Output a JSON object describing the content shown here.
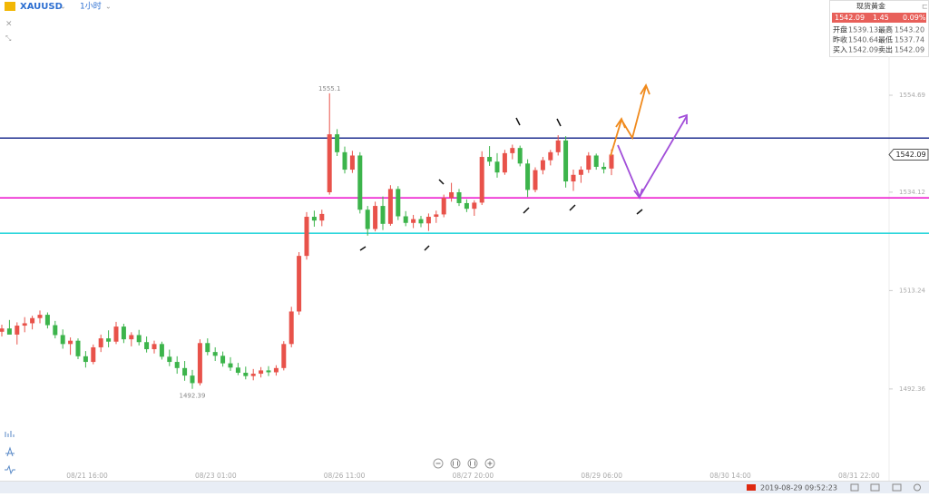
{
  "header": {
    "symbol": "XAUUSD",
    "interval": "1小时"
  },
  "quote_panel": {
    "title": "现货黄金",
    "price": "1542.09",
    "change": "1.45",
    "change_pct": "0.09%",
    "rows": [
      [
        "开盘",
        "1539.13",
        "最高",
        "1543.20"
      ],
      [
        "昨收",
        "1540.64",
        "最低",
        "1537.74"
      ],
      [
        "买入",
        "1542.09",
        "卖出",
        "1542.09"
      ]
    ]
  },
  "status": {
    "datetime": "2019-08-29 09:52:23"
  },
  "chart_data": {
    "type": "candlestick",
    "up_color": "#e8524a",
    "down_color": "#3cb44b",
    "ylim": [
      1472.9,
      1574.9
    ],
    "yticks": [
      1554.69,
      1534.12,
      1513.24,
      1492.36
    ],
    "last_price": 1542.09,
    "high_label": "1555.1",
    "low_label": "1492.39",
    "time_labels": [
      "08/21 16:00",
      "08/23 01:00",
      "08/26 11:00",
      "08/27 20:00",
      "08/29 06:00",
      "08/30 14:00",
      "08/31 22:00"
    ],
    "levels": [
      {
        "value": 1545.6,
        "color": "#1f2f8f"
      },
      {
        "value": 1532.9,
        "color": "#ee1fd0"
      },
      {
        "value": 1525.4,
        "color": "#2fd6dc"
      }
    ],
    "candles": [
      [
        1504.5,
        1506,
        1503.5,
        1505.2
      ],
      [
        1505.2,
        1507,
        1504,
        1503.9
      ],
      [
        1503.9,
        1506.5,
        1501.8,
        1505.8
      ],
      [
        1505.8,
        1507.6,
        1504.4,
        1506.3
      ],
      [
        1506.3,
        1507.9,
        1505,
        1507.4
      ],
      [
        1507.4,
        1509,
        1506.3,
        1508.1
      ],
      [
        1508.1,
        1508.6,
        1505.2,
        1505.9
      ],
      [
        1505.9,
        1506.8,
        1503.1,
        1503.8
      ],
      [
        1503.8,
        1505,
        1500.9,
        1501.9
      ],
      [
        1501.9,
        1503.3,
        1499.6,
        1502.6
      ],
      [
        1502.6,
        1503.1,
        1498.7,
        1499.3
      ],
      [
        1499.3,
        1500.4,
        1496.9,
        1498.1
      ],
      [
        1498.1,
        1501.8,
        1497.6,
        1501.2
      ],
      [
        1501.2,
        1503.9,
        1500.2,
        1503.1
      ],
      [
        1503.1,
        1504.8,
        1501.2,
        1502.4
      ],
      [
        1502.4,
        1506.6,
        1501.9,
        1505.6
      ],
      [
        1505.6,
        1506.2,
        1502.1,
        1502.9
      ],
      [
        1502.9,
        1504.4,
        1501.4,
        1503.8
      ],
      [
        1503.8,
        1504.9,
        1501.6,
        1502.3
      ],
      [
        1502.3,
        1503.5,
        1500.1,
        1500.8
      ],
      [
        1500.8,
        1502.6,
        1499.9,
        1501.9
      ],
      [
        1501.9,
        1502.4,
        1498.6,
        1499.2
      ],
      [
        1499.2,
        1500.7,
        1497.2,
        1498.1
      ],
      [
        1498.1,
        1499.3,
        1495.6,
        1496.8
      ],
      [
        1496.8,
        1498.3,
        1494.1,
        1495.2
      ],
      [
        1495.2,
        1496.4,
        1492.39,
        1493.6
      ],
      [
        1493.6,
        1502.9,
        1493.1,
        1502.1
      ],
      [
        1502.1,
        1503.1,
        1499.5,
        1500.2
      ],
      [
        1500.2,
        1501.2,
        1498.3,
        1499.4
      ],
      [
        1499.4,
        1500.3,
        1497.1,
        1497.8
      ],
      [
        1497.8,
        1499.1,
        1496.2,
        1496.9
      ],
      [
        1496.9,
        1497.9,
        1495.3,
        1495.8
      ],
      [
        1495.8,
        1497.1,
        1494.4,
        1495.1
      ],
      [
        1495.1,
        1496.6,
        1494.2,
        1495.6
      ],
      [
        1495.6,
        1497,
        1494.8,
        1496.3
      ],
      [
        1496.3,
        1497.2,
        1495.1,
        1495.9
      ],
      [
        1495.9,
        1497.4,
        1495.2,
        1496.8
      ],
      [
        1496.8,
        1502.5,
        1496.3,
        1501.9
      ],
      [
        1501.9,
        1509.8,
        1501.2,
        1508.8
      ],
      [
        1508.8,
        1521.4,
        1508.1,
        1520.6
      ],
      [
        1520.6,
        1529.9,
        1519.8,
        1528.9
      ],
      [
        1528.9,
        1530.2,
        1526.8,
        1528.1
      ],
      [
        1528.1,
        1530.4,
        1526.9,
        1529.5
      ],
      [
        1534.1,
        1555.1,
        1533.6,
        1546.4
      ],
      [
        1546.4,
        1547.5,
        1541.8,
        1542.6
      ],
      [
        1542.6,
        1543.8,
        1538.1,
        1538.9
      ],
      [
        1538.9,
        1542.9,
        1538.2,
        1541.9
      ],
      [
        1541.9,
        1542.6,
        1529.6,
        1530.4
      ],
      [
        1530.4,
        1531.2,
        1524.9,
        1526.3
      ],
      [
        1526.3,
        1532.1,
        1525.8,
        1531.2
      ],
      [
        1531.2,
        1533.2,
        1526.1,
        1527.4
      ],
      [
        1527.4,
        1535.6,
        1527,
        1534.8
      ],
      [
        1534.8,
        1535.4,
        1528.2,
        1529
      ],
      [
        1529,
        1530.1,
        1526.9,
        1527.6
      ],
      [
        1527.6,
        1529.3,
        1526.5,
        1528.4
      ],
      [
        1528.4,
        1529.1,
        1526.7,
        1527.5
      ],
      [
        1527.5,
        1529.6,
        1525.9,
        1528.9
      ],
      [
        1528.9,
        1530.2,
        1527.6,
        1529.4
      ],
      [
        1529.4,
        1533.6,
        1528.8,
        1532.9
      ],
      [
        1532.9,
        1536.1,
        1532.1,
        1534.1
      ],
      [
        1534.1,
        1534.8,
        1531.2,
        1531.8
      ],
      [
        1531.8,
        1532.6,
        1529.9,
        1530.6
      ],
      [
        1530.6,
        1532.4,
        1529.1,
        1531.9
      ],
      [
        1531.9,
        1542.8,
        1531.4,
        1541.6
      ],
      [
        1541.6,
        1543.9,
        1539.7,
        1540.6
      ],
      [
        1540.6,
        1542.4,
        1537.2,
        1538.3
      ],
      [
        1538.3,
        1543.1,
        1537.8,
        1542.4
      ],
      [
        1542.4,
        1544.2,
        1541.1,
        1543.5
      ],
      [
        1543.5,
        1544,
        1539.6,
        1540.2
      ],
      [
        1540.2,
        1541.1,
        1533.1,
        1534.6
      ],
      [
        1534.6,
        1539.4,
        1534.1,
        1538.8
      ],
      [
        1538.8,
        1541.6,
        1537.9,
        1540.9
      ],
      [
        1540.9,
        1543.1,
        1539.8,
        1542.6
      ],
      [
        1542.6,
        1546.2,
        1541.9,
        1545.1
      ],
      [
        1545.1,
        1546,
        1535.1,
        1536.4
      ],
      [
        1536.4,
        1538.9,
        1534.4,
        1537.8
      ],
      [
        1537.8,
        1539.6,
        1536.1,
        1538.9
      ],
      [
        1538.9,
        1542.6,
        1538.2,
        1541.9
      ],
      [
        1541.9,
        1542.3,
        1538.9,
        1539.5
      ],
      [
        1539.5,
        1540.4,
        1538.1,
        1539
      ],
      [
        1539.13,
        1543.2,
        1537.74,
        1542.09
      ]
    ]
  }
}
